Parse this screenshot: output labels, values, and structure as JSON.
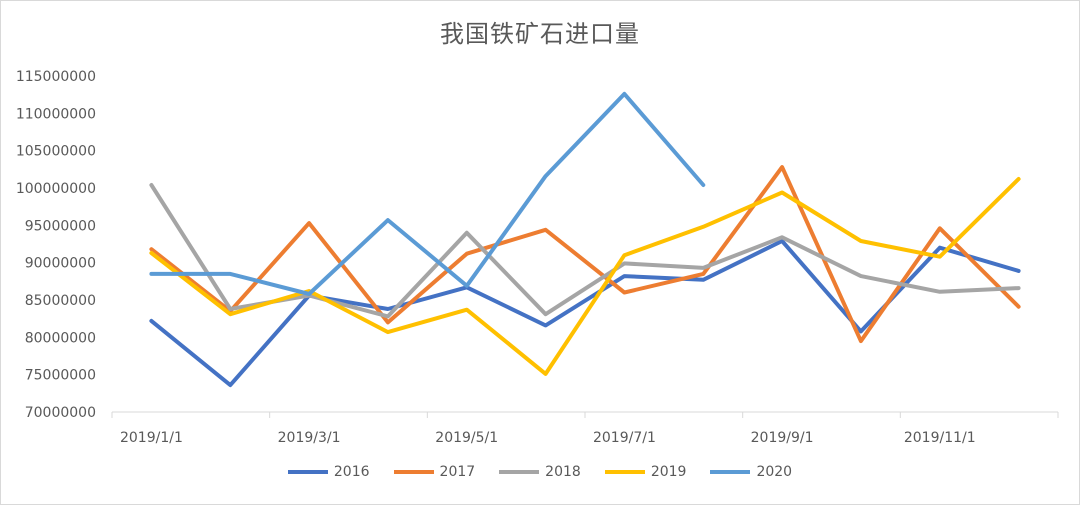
{
  "chart_data": {
    "type": "line",
    "title": "我国铁矿石进口量",
    "x": [
      "2019/1/1",
      "2019/2/1",
      "2019/3/1",
      "2019/4/1",
      "2019/5/1",
      "2019/6/1",
      "2019/7/1",
      "2019/8/1",
      "2019/9/1",
      "2019/10/1",
      "2019/11/1",
      "2019/12/1"
    ],
    "x_tick_labels": [
      "2019/1/1",
      "2019/3/1",
      "2019/5/1",
      "2019/7/1",
      "2019/9/1",
      "2019/11/1"
    ],
    "ylim": [
      70000000,
      115000000
    ],
    "y_ticks": [
      "70000000",
      "75000000",
      "80000000",
      "85000000",
      "90000000",
      "95000000",
      "100000000",
      "105000000",
      "110000000",
      "115000000"
    ],
    "grid": false,
    "legend": "bottom",
    "series": [
      {
        "name": "2016",
        "color": "#4472C4",
        "values": [
          82200000,
          73600000,
          85600000,
          83800000,
          86700000,
          81600000,
          88200000,
          87700000,
          92900000,
          80800000,
          92000000,
          88900000
        ]
      },
      {
        "name": "2017",
        "color": "#ED7D31",
        "values": [
          91800000,
          83500000,
          95300000,
          82000000,
          91200000,
          94400000,
          86000000,
          88500000,
          102800000,
          79500000,
          94600000,
          84100000
        ]
      },
      {
        "name": "2018",
        "color": "#A5A5A5",
        "values": [
          100400000,
          83800000,
          85600000,
          82800000,
          94000000,
          83100000,
          89900000,
          89300000,
          93400000,
          88200000,
          86100000,
          86600000
        ]
      },
      {
        "name": "2019",
        "color": "#FFC000",
        "values": [
          91300000,
          83100000,
          86200000,
          80700000,
          83700000,
          75100000,
          91000000,
          94800000,
          99400000,
          92900000,
          90800000,
          101200000
        ]
      },
      {
        "name": "2020",
        "color": "#5B9BD5",
        "values": [
          88500000,
          88500000,
          85800000,
          95700000,
          86900000,
          101600000,
          112600000,
          100400000,
          null,
          null,
          null,
          null
        ]
      }
    ]
  }
}
